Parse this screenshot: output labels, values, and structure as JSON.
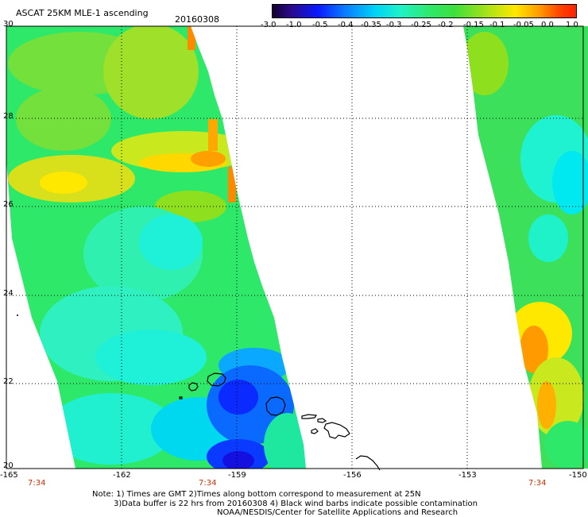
{
  "title": "ASCAT 25KM MLE-1 ascending",
  "date": "20160308",
  "colorbar": {
    "ticks": [
      "-3.0",
      "-1.0",
      "-0.5",
      "-0.4",
      "-0.35",
      "-0.3",
      "-0.25",
      "-0.2",
      "-0.15",
      "-0.1",
      "-0.05",
      "0.0",
      "1.0"
    ],
    "colors": [
      "#150030",
      "#0a1aff",
      "#00d4f5",
      "#2ee86a",
      "#ffe800",
      "#ff4a00"
    ]
  },
  "axes": {
    "lat_labels": [
      "30",
      "28",
      "26",
      "24",
      "22",
      "20"
    ],
    "lon_labels": [
      "-165",
      "-162",
      "-159",
      "-156",
      "-153",
      "-150"
    ],
    "time_labels": [
      "7:34",
      "7:34",
      "7:34"
    ]
  },
  "notes": [
    "Note: 1) Times are GMT 2)Times along bottom correspond to measurement at 25N",
    "3)Data buffer is 22 hrs from 20160308 4) Black wind barbs indicate possible contamination",
    "NOAA/NESDIS/Center for Satellite Applications and Research"
  ]
}
